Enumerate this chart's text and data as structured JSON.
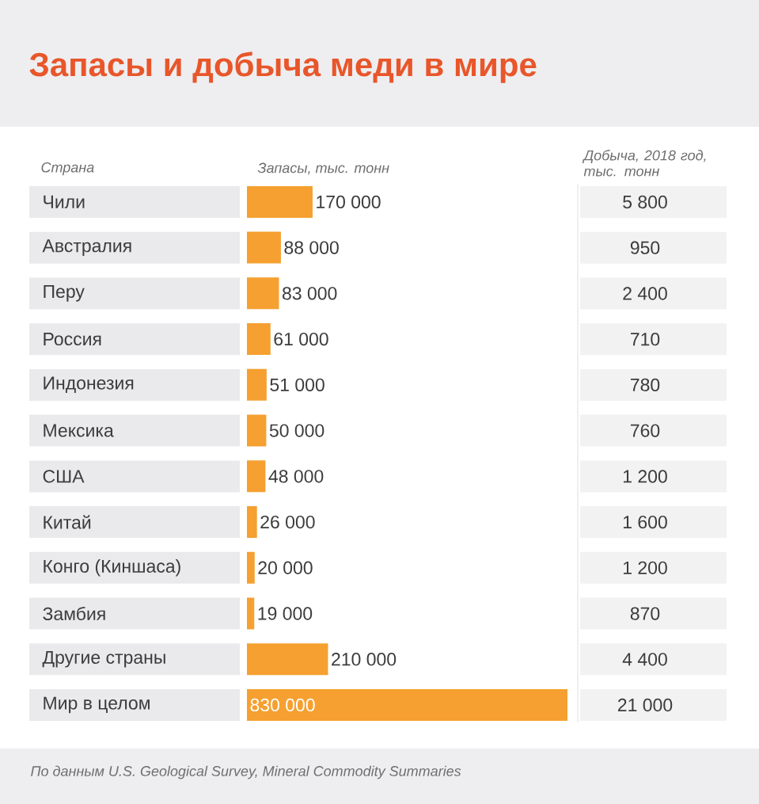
{
  "chart_data": [
    {
      "type": "bar",
      "orientation": "horizontal",
      "title": "Запасы и добыча меди в мире",
      "xlabel": "Запасы, тыс. тонн",
      "ylabel": "Страна",
      "categories": [
        "Чили",
        "Австралия",
        "Перу",
        "Россия",
        "Индонезия",
        "Мексика",
        "США",
        "Китай",
        "Конго (Киншаса)",
        "Замбия",
        "Другие страны",
        "Мир в целом"
      ],
      "values": [
        170000,
        88000,
        83000,
        61000,
        51000,
        50000,
        48000,
        26000,
        20000,
        19000,
        210000,
        830000
      ],
      "value_labels": [
        "170 000",
        "88 000",
        "83 000",
        "61 000",
        "51 000",
        "50 000",
        "48 000",
        "26 000",
        "20 000",
        "19 000",
        "210 000",
        "830 000"
      ],
      "color": "#f5a030",
      "tick_labels": "y",
      "annotations": [
        "По данным U.S. Geological Survey, Mineral Commodity Summaries"
      ]
    },
    {
      "type": "other",
      "title": "Добыча, 2018 год, тыс. тонн",
      "categories": [
        null,
        null,
        null,
        null,
        null,
        null,
        null,
        null,
        null,
        null,
        null,
        null
      ],
      "values": [
        5800,
        950,
        2400,
        710,
        780,
        760,
        1200,
        1600,
        1200,
        870,
        4400,
        21000
      ],
      "value_labels": [
        "5 800",
        "950",
        "2 400",
        "710",
        "780",
        "760",
        "1 200",
        "1 600",
        "1 200",
        "870",
        "4 400",
        "21 000"
      ]
    }
  ]
}
